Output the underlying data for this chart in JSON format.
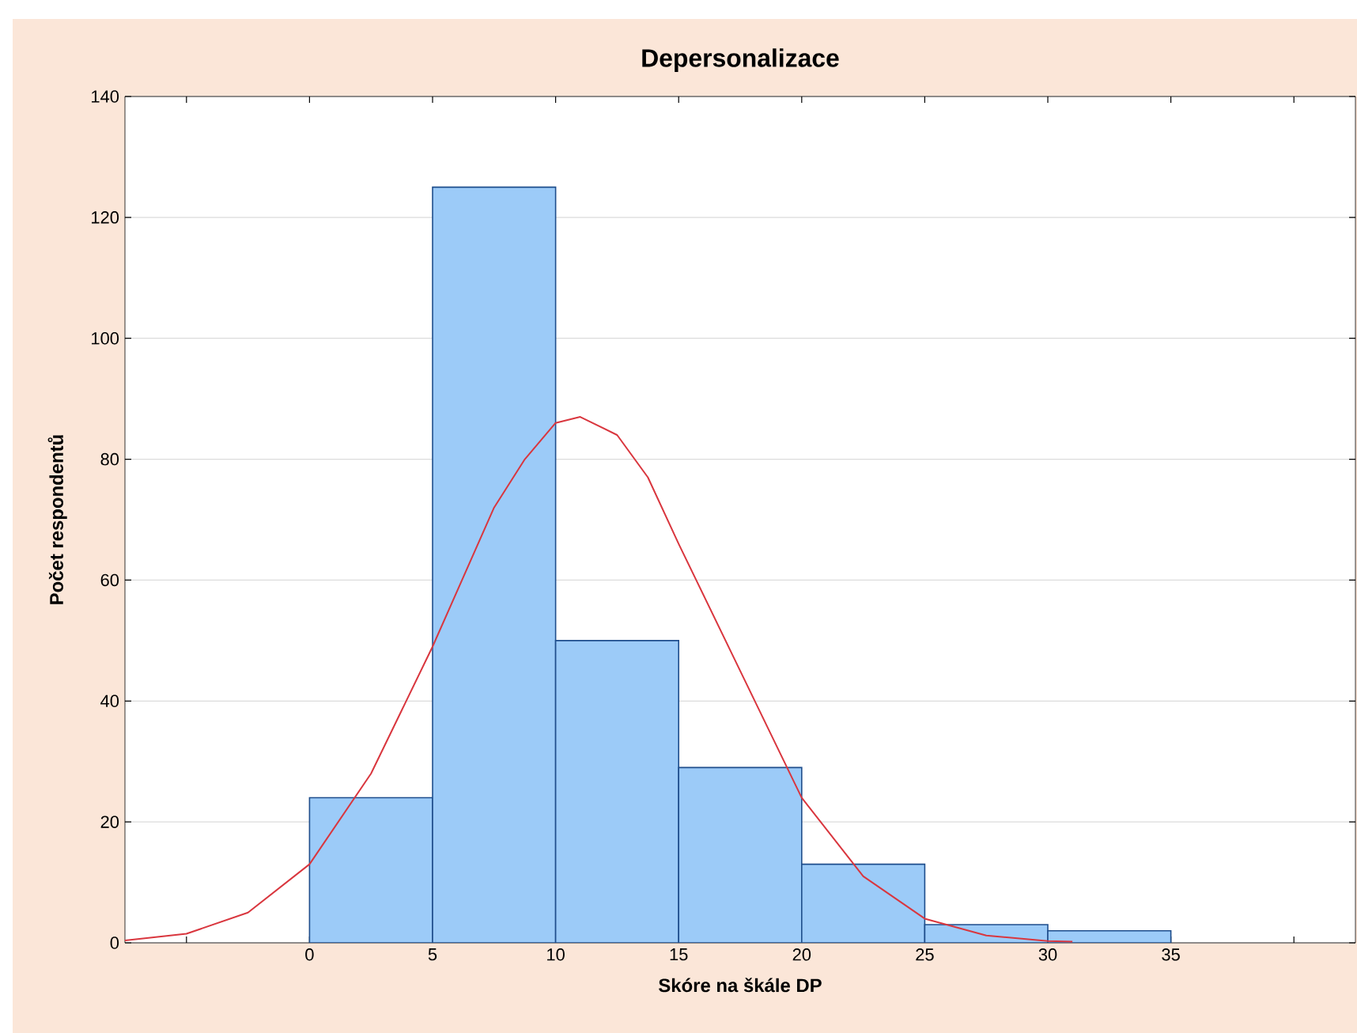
{
  "chart_data": {
    "type": "histogram",
    "title": "Depersonalizace",
    "xlabel": "Skóre na škále DP",
    "ylabel": "Počet respondentů",
    "series": [
      {
        "bins": [
          0,
          5,
          10,
          15,
          20,
          25,
          30,
          35
        ],
        "values": [
          24,
          125,
          50,
          29,
          13,
          3,
          2
        ],
        "color": "#9ccbf8"
      },
      {
        "type": "line",
        "x": [
          -7.5,
          -5,
          -2.5,
          0,
          2.5,
          5,
          7.5,
          8.75,
          10,
          11,
          12.5,
          13.75,
          15,
          17.5,
          20,
          22.5,
          25,
          27.5,
          30,
          31
        ],
        "values": [
          0.4,
          1.5,
          5,
          13,
          28,
          49,
          72,
          80,
          86,
          87,
          84,
          77,
          66,
          45,
          24,
          11,
          4,
          1.2,
          0.3,
          0.2
        ],
        "color": "#d9363e"
      }
    ],
    "xlim": [
      -7.5,
      42.5
    ],
    "ylim": [
      0,
      140
    ],
    "xticks": [
      {
        "value": -5,
        "label": null
      },
      0,
      5,
      10,
      15,
      20,
      25,
      30,
      35,
      {
        "value": 40,
        "label": null
      }
    ],
    "yticks": [
      0,
      20,
      40,
      60,
      80,
      100,
      120,
      140
    ],
    "grid": "y",
    "line_style": "solid",
    "marker": "none"
  }
}
